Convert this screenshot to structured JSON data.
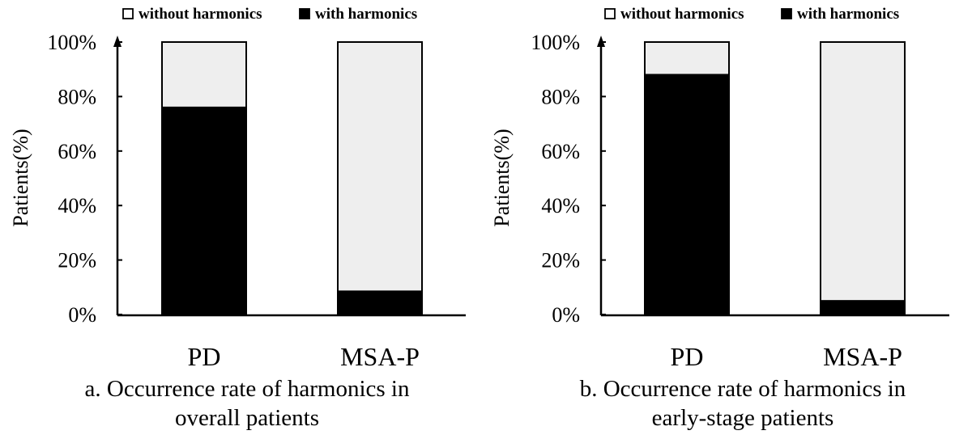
{
  "chart_data": [
    {
      "type": "bar",
      "stacked": true,
      "percent": true,
      "categories": [
        "PD",
        "MSA-P"
      ],
      "series": [
        {
          "name": "with harmonics",
          "values": [
            76,
            8.5
          ],
          "color": "#000000"
        },
        {
          "name": "without harmonics",
          "values": [
            24,
            91.5
          ],
          "color": "#eeeeee"
        }
      ],
      "title": "",
      "caption_lines": [
        "a. Occurrence rate of harmonics in",
        "overall patients"
      ],
      "xlabel": "",
      "ylabel": "Patients(%)",
      "ylim": [
        0,
        100
      ],
      "yticks": [
        "0%",
        "20%",
        "40%",
        "60%",
        "80%",
        "100%"
      ],
      "legend": [
        "without harmonics",
        "with harmonics"
      ],
      "legend_position": "top",
      "grid": false
    },
    {
      "type": "bar",
      "stacked": true,
      "percent": true,
      "categories": [
        "PD",
        "MSA-P"
      ],
      "series": [
        {
          "name": "with harmonics",
          "values": [
            88,
            5
          ],
          "color": "#000000"
        },
        {
          "name": "without harmonics",
          "values": [
            12,
            95
          ],
          "color": "#eeeeee"
        }
      ],
      "title": "",
      "caption_lines": [
        "b. Occurrence rate of harmonics in",
        "early-stage patients"
      ],
      "xlabel": "",
      "ylabel": "Patients(%)",
      "ylim": [
        0,
        100
      ],
      "yticks": [
        "0%",
        "20%",
        "40%",
        "60%",
        "80%",
        "100%"
      ],
      "legend": [
        "without harmonics",
        "with harmonics"
      ],
      "legend_position": "top",
      "grid": false
    }
  ]
}
